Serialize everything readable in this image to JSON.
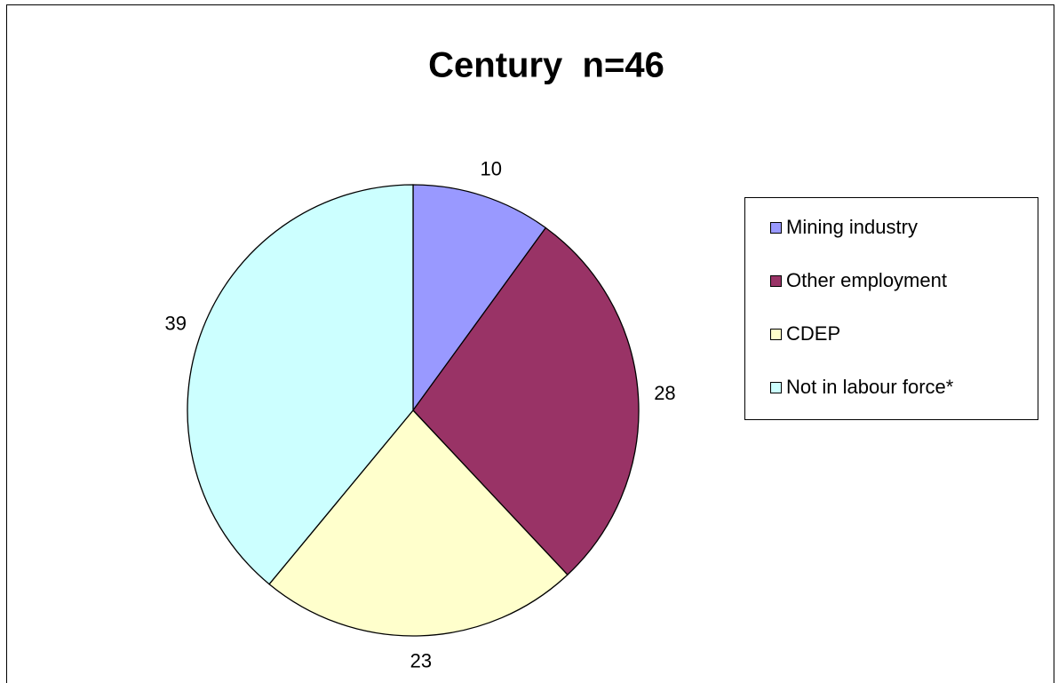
{
  "chart_data": {
    "type": "pie",
    "title": "Century  n=46",
    "categories": [
      "Mining industry",
      "Other employment",
      "CDEP",
      "Not in labour force*"
    ],
    "values": [
      10,
      28,
      23,
      39
    ],
    "colors": [
      "#9999ff",
      "#993366",
      "#ffffcc",
      "#ccffff"
    ],
    "legend": "right"
  }
}
